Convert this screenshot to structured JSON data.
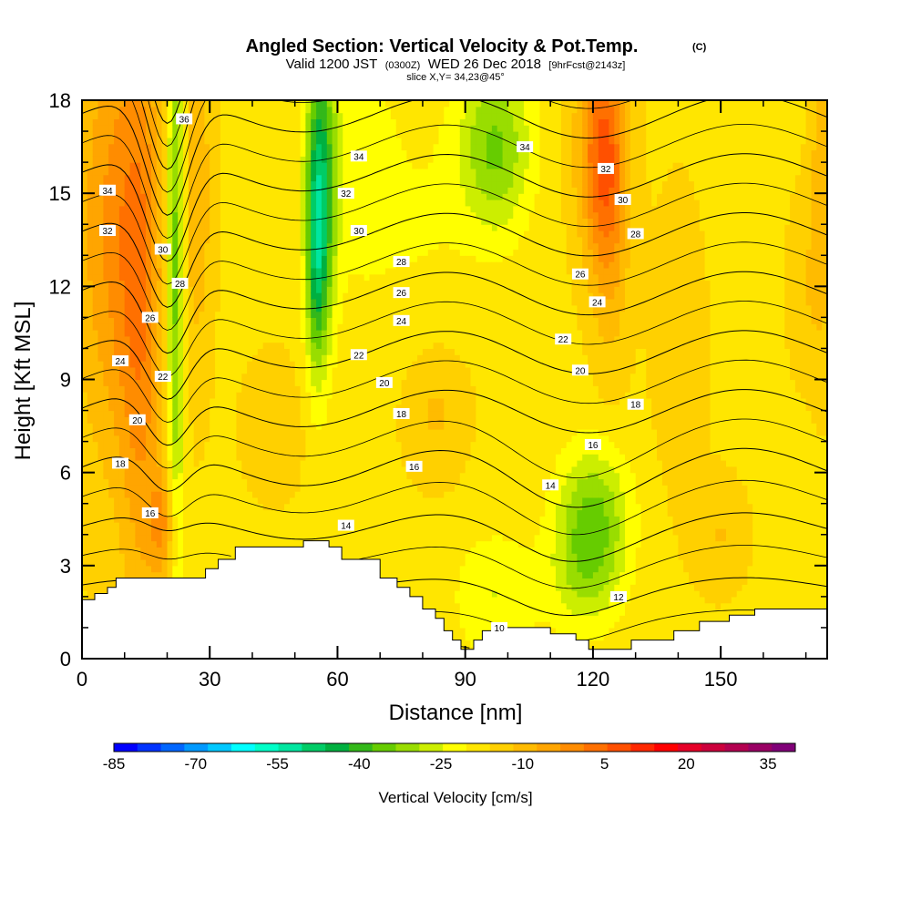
{
  "title": {
    "main": "Angled Section: Vertical Velocity & Pot.Temp.",
    "main_unit": "(C)",
    "sub_valid": "Valid 1200 JST",
    "sub_utc": "(0300Z)",
    "sub_date": "WED 26 Dec 2018",
    "sub_fcst": "[9hrFcst@2143z]",
    "slice": "slice X,Y= 34,23@45°"
  },
  "chart_data": {
    "type": "heatmap",
    "xlabel": "Distance [nm]",
    "ylabel": "Height [Kft MSL]",
    "xlim": [
      0,
      175
    ],
    "ylim": [
      0,
      18
    ],
    "x_ticks": [
      0,
      30,
      60,
      90,
      120,
      150
    ],
    "y_ticks": [
      0,
      3,
      6,
      9,
      12,
      15,
      18
    ],
    "fill_variable": "Vertical Velocity [cm/s]",
    "contour_variable": "Potential Temperature (C)",
    "colorbar": {
      "label": "Vertical Velocity [cm/s]",
      "tick_labels": [
        "-85",
        "-70",
        "-55",
        "-40",
        "-25",
        "-10",
        "5",
        "20",
        "35"
      ],
      "tick_values": [
        -85,
        -70,
        -55,
        -40,
        -25,
        -10,
        5,
        20,
        35
      ],
      "min": -85,
      "max": 40,
      "step": 5,
      "colors": [
        "#0000ff",
        "#0033ff",
        "#0066ff",
        "#0099ff",
        "#00c8ff",
        "#00ffff",
        "#00ffc8",
        "#00e6a0",
        "#00cc66",
        "#00b040",
        "#33b81a",
        "#66cc00",
        "#99dd00",
        "#ccee00",
        "#ffff00",
        "#ffe600",
        "#ffd000",
        "#ffbb00",
        "#ffa500",
        "#ff8c00",
        "#ff7000",
        "#ff5000",
        "#ff2800",
        "#ff0000",
        "#e60028",
        "#cc003c",
        "#b30050",
        "#990064",
        "#800078"
      ]
    },
    "terrain": [
      [
        0,
        1.9
      ],
      [
        3,
        1.9
      ],
      [
        3,
        2.1
      ],
      [
        6,
        2.1
      ],
      [
        6,
        2.3
      ],
      [
        8,
        2.3
      ],
      [
        8,
        2.6
      ],
      [
        29,
        2.6
      ],
      [
        29,
        2.9
      ],
      [
        32,
        2.9
      ],
      [
        32,
        3.2
      ],
      [
        36,
        3.2
      ],
      [
        36,
        3.6
      ],
      [
        52,
        3.6
      ],
      [
        52,
        3.8
      ],
      [
        58,
        3.8
      ],
      [
        58,
        3.6
      ],
      [
        61,
        3.6
      ],
      [
        61,
        3.2
      ],
      [
        70,
        3.2
      ],
      [
        70,
        2.6
      ],
      [
        74,
        2.6
      ],
      [
        74,
        2.3
      ],
      [
        77,
        2.3
      ],
      [
        77,
        2.0
      ],
      [
        80,
        2.0
      ],
      [
        80,
        1.6
      ],
      [
        83,
        1.6
      ],
      [
        83,
        1.3
      ],
      [
        85,
        1.3
      ],
      [
        85,
        0.9
      ],
      [
        87,
        0.9
      ],
      [
        87,
        0.6
      ],
      [
        89,
        0.6
      ],
      [
        89,
        0.3
      ],
      [
        92,
        0.3
      ],
      [
        92,
        0.6
      ],
      [
        94,
        0.6
      ],
      [
        94,
        0.9
      ],
      [
        98,
        0.9
      ],
      [
        98,
        1.0
      ],
      [
        110,
        1.0
      ],
      [
        110,
        0.8
      ],
      [
        116,
        0.8
      ],
      [
        116,
        0.6
      ],
      [
        119,
        0.6
      ],
      [
        119,
        0.3
      ],
      [
        129,
        0.3
      ],
      [
        129,
        0.6
      ],
      [
        139,
        0.6
      ],
      [
        139,
        0.9
      ],
      [
        145,
        0.9
      ],
      [
        145,
        1.2
      ],
      [
        152,
        1.2
      ],
      [
        152,
        1.4
      ],
      [
        158,
        1.4
      ],
      [
        158,
        1.6
      ],
      [
        175,
        1.6
      ]
    ],
    "vv_features": [
      {
        "x": 8,
        "y": 14,
        "sx": 7,
        "sy": 5.5,
        "amp": 17
      },
      {
        "x": 14,
        "y": 10,
        "sx": 3.5,
        "sy": 7,
        "amp": 13
      },
      {
        "x": 19,
        "y": 4.3,
        "sx": 2.2,
        "sy": 1.2,
        "amp": 15
      },
      {
        "x": 27,
        "y": 15,
        "sx": 2.5,
        "sy": 4,
        "amp": 10
      },
      {
        "x": 22,
        "y": 13,
        "sx": 1.5,
        "sy": 7,
        "amp": -24
      },
      {
        "x": 56,
        "y": 15,
        "sx": 2.5,
        "sy": 3.5,
        "amp": -32
      },
      {
        "x": 55,
        "y": 12.5,
        "sx": 1.5,
        "sy": 2.5,
        "amp": -14
      },
      {
        "x": 97,
        "y": 16.5,
        "sx": 6,
        "sy": 2,
        "amp": -20
      },
      {
        "x": 122,
        "y": 16.5,
        "sx": 4,
        "sy": 2.5,
        "amp": 24
      },
      {
        "x": 124,
        "y": 13.5,
        "sx": 3,
        "sy": 3,
        "amp": 10
      },
      {
        "x": 120,
        "y": 4.6,
        "sx": 6,
        "sy": 1.6,
        "amp": -20
      },
      {
        "x": 118,
        "y": 2.5,
        "sx": 6,
        "sy": 1.3,
        "amp": -10
      },
      {
        "x": 97,
        "y": 2,
        "sx": 7,
        "sy": 1.5,
        "amp": -9
      },
      {
        "x": 83,
        "y": 8,
        "sx": 5,
        "sy": 1.5,
        "amp": 7
      },
      {
        "x": 45,
        "y": 7.5,
        "sx": 5,
        "sy": 1.5,
        "amp": 5
      },
      {
        "x": 150,
        "y": 4,
        "sx": 4,
        "sy": 1.2,
        "amp": 6
      },
      {
        "x": 174,
        "y": 16,
        "sx": 2,
        "sy": 4,
        "amp": 10
      },
      {
        "x": 170,
        "y": 12,
        "sx": 3,
        "sy": 2,
        "amp": 5
      },
      {
        "x": 65,
        "y": 16,
        "sx": 6,
        "sy": 3,
        "amp": -7
      },
      {
        "x": 80,
        "y": 14,
        "sx": 8,
        "sy": 3,
        "amp": -4
      },
      {
        "x": 140,
        "y": 10,
        "sx": 5,
        "sy": 4,
        "amp": 3
      }
    ],
    "vv_base": -6,
    "isentropes_levels": [
      10,
      12,
      14,
      16,
      18,
      20,
      22,
      24,
      26,
      28,
      30,
      32,
      34,
      36
    ],
    "contour_labels": [
      {
        "text": "36",
        "x": 24,
        "y": 17.4
      },
      {
        "text": "34",
        "x": 6,
        "y": 15.1
      },
      {
        "text": "32",
        "x": 6,
        "y": 13.8
      },
      {
        "text": "30",
        "x": 19,
        "y": 13.2
      },
      {
        "text": "28",
        "x": 23,
        "y": 12.1
      },
      {
        "text": "26",
        "x": 16,
        "y": 11.0
      },
      {
        "text": "24",
        "x": 9,
        "y": 9.6
      },
      {
        "text": "22",
        "x": 19,
        "y": 9.1
      },
      {
        "text": "20",
        "x": 13,
        "y": 7.7
      },
      {
        "text": "18",
        "x": 9,
        "y": 6.3
      },
      {
        "text": "16",
        "x": 16,
        "y": 4.7
      },
      {
        "text": "34",
        "x": 65,
        "y": 16.2
      },
      {
        "text": "32",
        "x": 62,
        "y": 15.0
      },
      {
        "text": "30",
        "x": 65,
        "y": 13.8
      },
      {
        "text": "28",
        "x": 75,
        "y": 12.8
      },
      {
        "text": "26",
        "x": 75,
        "y": 11.8
      },
      {
        "text": "24",
        "x": 75,
        "y": 10.9
      },
      {
        "text": "22",
        "x": 65,
        "y": 9.8
      },
      {
        "text": "20",
        "x": 71,
        "y": 8.9
      },
      {
        "text": "18",
        "x": 75,
        "y": 7.9
      },
      {
        "text": "16",
        "x": 78,
        "y": 6.2
      },
      {
        "text": "14",
        "x": 62,
        "y": 4.3
      },
      {
        "text": "34",
        "x": 104,
        "y": 16.5
      },
      {
        "text": "32",
        "x": 123,
        "y": 15.8
      },
      {
        "text": "30",
        "x": 127,
        "y": 14.8
      },
      {
        "text": "28",
        "x": 130,
        "y": 13.7
      },
      {
        "text": "26",
        "x": 117,
        "y": 12.4
      },
      {
        "text": "24",
        "x": 121,
        "y": 11.5
      },
      {
        "text": "22",
        "x": 113,
        "y": 10.3
      },
      {
        "text": "20",
        "x": 117,
        "y": 9.3
      },
      {
        "text": "18",
        "x": 130,
        "y": 8.2
      },
      {
        "text": "16",
        "x": 120,
        "y": 6.9
      },
      {
        "text": "14",
        "x": 110,
        "y": 5.6
      },
      {
        "text": "12",
        "x": 126,
        "y": 2.0
      },
      {
        "text": "10",
        "x": 98,
        "y": 1.0
      }
    ]
  }
}
